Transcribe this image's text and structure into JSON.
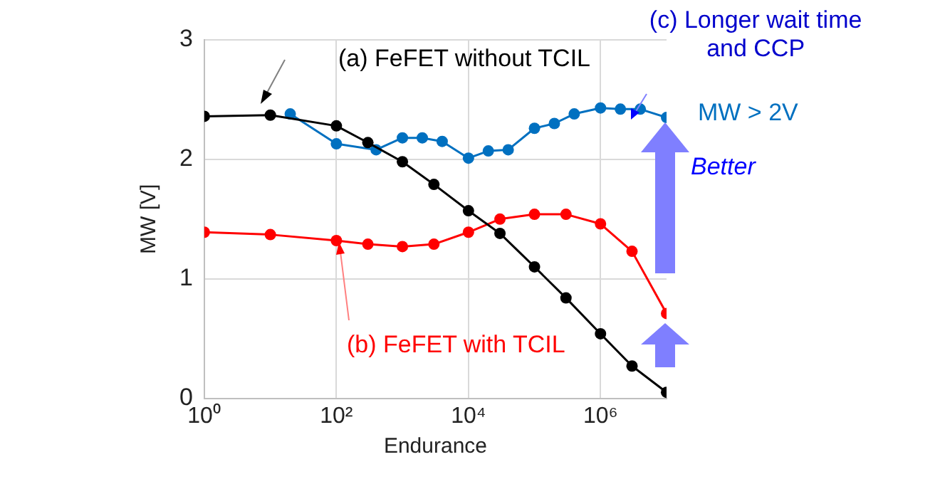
{
  "chart_data": {
    "type": "line",
    "xlabel": "Endurance",
    "ylabel": "MW [V]",
    "log": "x",
    "xlim": [
      1,
      10000000
    ],
    "xticks": [
      {
        "value": 1,
        "label": "10⁰"
      },
      {
        "value": 100,
        "label": "10²"
      },
      {
        "value": 10000,
        "label": "10⁴"
      },
      {
        "value": 1000000,
        "label": "10⁶"
      }
    ],
    "ylim": [
      0,
      3
    ],
    "yticks": [
      0,
      1,
      2,
      3
    ],
    "grid": true,
    "legend": false,
    "marker": "circle",
    "line_style": "solid",
    "series": [
      {
        "color": "#000000",
        "x": [
          1,
          10,
          100,
          300,
          1000,
          3000,
          10000,
          30000,
          100000,
          300000,
          1000000,
          3000000,
          10000000
        ],
        "values": [
          2.36,
          2.37,
          2.28,
          2.14,
          1.98,
          1.79,
          1.57,
          1.38,
          1.1,
          0.84,
          0.54,
          0.27,
          0.05
        ]
      },
      {
        "color": "#ff0000",
        "x": [
          1,
          10,
          100,
          300,
          1000,
          3000,
          10000,
          30000,
          100000,
          300000,
          1000000,
          3000000,
          10000000
        ],
        "values": [
          1.39,
          1.37,
          1.32,
          1.29,
          1.27,
          1.29,
          1.39,
          1.5,
          1.54,
          1.54,
          1.46,
          1.23,
          0.71
        ]
      },
      {
        "color": "#0070c0",
        "x": [
          20,
          100,
          400,
          1000,
          2000,
          4000,
          10000,
          20000,
          40000,
          100000,
          200000,
          400000,
          1000000,
          2000000,
          4000000,
          10000000
        ],
        "values": [
          2.38,
          2.13,
          2.08,
          2.18,
          2.18,
          2.15,
          2.01,
          2.07,
          2.08,
          2.26,
          2.3,
          2.38,
          2.43,
          2.42,
          2.42,
          2.35
        ]
      }
    ],
    "annotations": [
      "(a) FeFET without TCIL",
      {
        "text": "(b) FeFET with TCIL",
        "x": 100,
        "y": 1.32
      },
      {
        "text": "(c) Longer wait time\nand CCP",
        "x": 4000000,
        "y": 2.42
      },
      "MW > 2V",
      "Better"
    ]
  }
}
